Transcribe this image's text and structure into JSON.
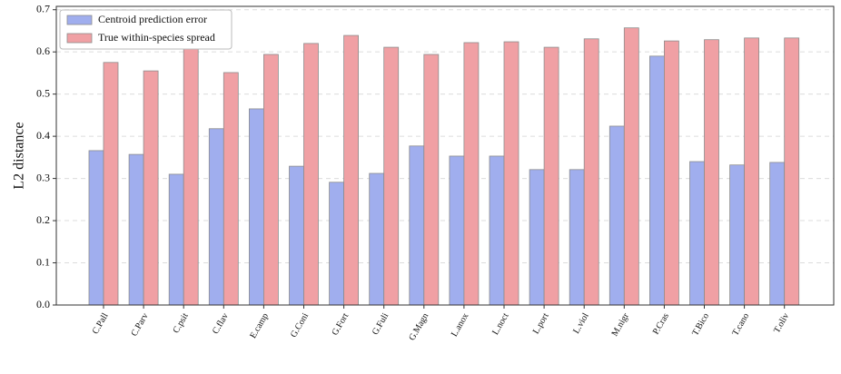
{
  "chart_data": {
    "type": "bar",
    "ylabel": "L2 distance",
    "categories": [
      "C.Pall",
      "C.Parv",
      "C.psit",
      "C.flav",
      "E.camp",
      "G.Coni",
      "G.Fort",
      "G.Fuli",
      "G.Magn",
      "L.anox",
      "L.noct",
      "L.port",
      "L.viol",
      "M.nigr",
      "P.Cras",
      "T.Bico",
      "T.cano",
      "T.oliv"
    ],
    "series": [
      {
        "name": "Centroid prediction error",
        "color": "#a0aeee",
        "values": [
          0.366,
          0.357,
          0.31,
          0.418,
          0.465,
          0.329,
          0.291,
          0.312,
          0.377,
          0.353,
          0.353,
          0.321,
          0.321,
          0.424,
          0.59,
          0.34,
          0.332,
          0.338
        ]
      },
      {
        "name": "True within-species spread",
        "color": "#f0a0a4",
        "values": [
          0.575,
          0.555,
          0.609,
          0.551,
          0.594,
          0.62,
          0.639,
          0.611,
          0.594,
          0.622,
          0.624,
          0.611,
          0.631,
          0.657,
          0.626,
          0.629,
          0.633,
          0.633
        ]
      }
    ],
    "ylim": [
      0,
      0.708
    ],
    "yticks": [
      {
        "value": 0,
        "label": "0.0"
      },
      0.1,
      0.2,
      0.3,
      0.4,
      0.5,
      0.6,
      0.7
    ],
    "grid": true,
    "legend": "upper-left"
  }
}
